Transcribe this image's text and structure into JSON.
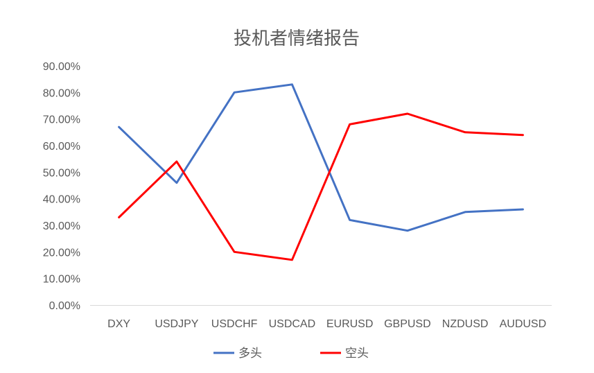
{
  "chart_data": {
    "type": "line",
    "title": "投机者情绪报告",
    "xlabel": "",
    "ylabel": "",
    "categories": [
      "DXY",
      "USDJPY",
      "USDCHF",
      "USDCAD",
      "EURUSD",
      "GBPUSD",
      "NZDUSD",
      "AUDUSD"
    ],
    "ylim": [
      0,
      0.9
    ],
    "y_ticks": [
      0,
      0.1,
      0.2,
      0.3,
      0.4,
      0.5,
      0.6,
      0.7,
      0.8,
      0.9
    ],
    "y_tick_labels": [
      "0.00%",
      "10.00%",
      "20.00%",
      "30.00%",
      "40.00%",
      "50.00%",
      "60.00%",
      "70.00%",
      "80.00%",
      "90.00%"
    ],
    "grid": false,
    "legend_position": "bottom",
    "series": [
      {
        "name": "多头",
        "color": "#4472C4",
        "values": [
          0.67,
          0.46,
          0.8,
          0.83,
          0.32,
          0.28,
          0.35,
          0.36
        ]
      },
      {
        "name": "空头",
        "color": "#FF0000",
        "values": [
          0.33,
          0.54,
          0.2,
          0.17,
          0.68,
          0.72,
          0.65,
          0.64
        ]
      }
    ],
    "axis_color": "#D9D9D9"
  }
}
